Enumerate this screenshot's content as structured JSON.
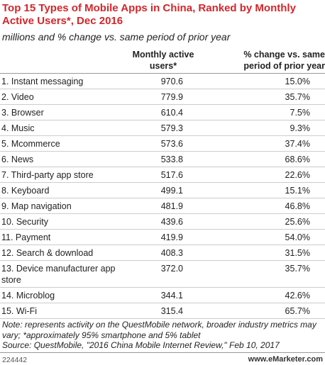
{
  "header": {
    "title": "Top 15 Types of Mobile Apps in China, Ranked by Monthly Active Users*, Dec 2016",
    "subtitle": "millions and % change vs. same period of prior year"
  },
  "table": {
    "columns": [
      "",
      "Monthly active users*",
      "% change vs. same period of prior year"
    ],
    "rows": [
      [
        "1. Instant messaging",
        "970.6",
        "15.0%"
      ],
      [
        "2. Video",
        "779.9",
        "35.7%"
      ],
      [
        "3. Browser",
        "610.4",
        "7.5%"
      ],
      [
        "4. Music",
        "579.3",
        "9.3%"
      ],
      [
        "5. Mcommerce",
        "573.6",
        "37.4%"
      ],
      [
        "6. News",
        "533.8",
        "68.6%"
      ],
      [
        "7. Third-party app store",
        "517.6",
        "22.6%"
      ],
      [
        "8. Keyboard",
        "499.1",
        "15.1%"
      ],
      [
        "9. Map navigation",
        "481.9",
        "46.8%"
      ],
      [
        "10. Security",
        "439.6",
        "25.6%"
      ],
      [
        "11. Payment",
        "419.9",
        "54.0%"
      ],
      [
        "12. Search & download",
        "408.3",
        "31.5%"
      ],
      [
        "13. Device manufacturer app store",
        "372.0",
        "35.7%"
      ],
      [
        "14. Microblog",
        "344.1",
        "42.6%"
      ],
      [
        "15. Wi-Fi",
        "315.4",
        "65.7%"
      ]
    ]
  },
  "notes": [
    "Note: represents activity on the QuestMobile network, broader industry metrics may vary; *approximately 95% smartphone and 5% tablet",
    "Source: QuestMobile, \"2016 China Mobile Internet Review,\" Feb 10, 2017"
  ],
  "footer": {
    "id": "224442",
    "site": "www.eMarketer.com"
  }
}
